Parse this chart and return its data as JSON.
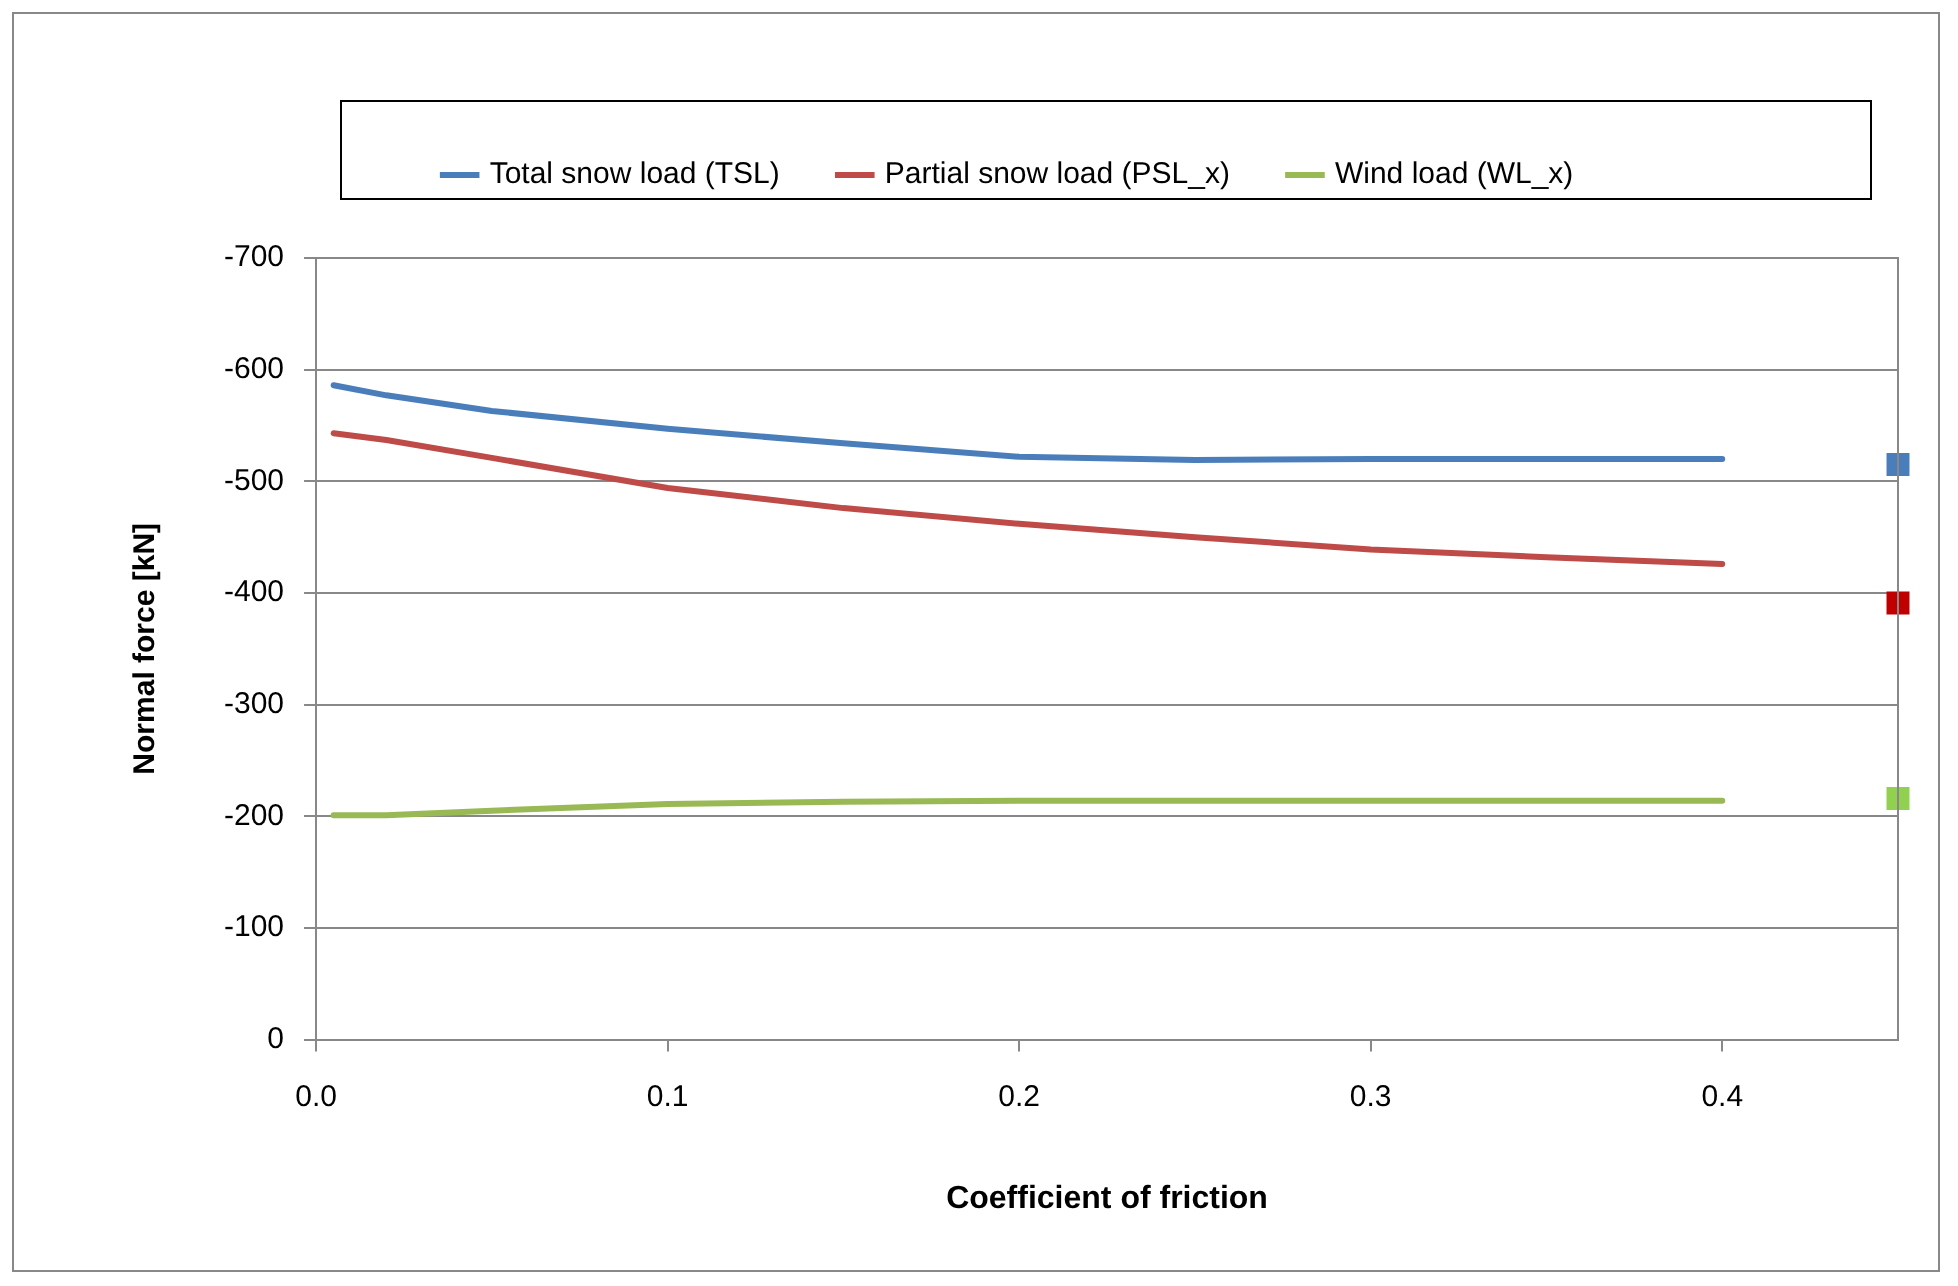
{
  "chart_data": {
    "type": "line",
    "xlabel": "Coefficient of friction",
    "ylabel": "Normal force [kN]",
    "xlim": [
      0,
      0.45
    ],
    "xticks": [
      {
        "value": 0,
        "label": "0.0"
      },
      {
        "value": 0.1,
        "label": "0.1"
      },
      {
        "value": 0.2,
        "label": "0.2"
      },
      {
        "value": 0.3,
        "label": "0.3"
      },
      {
        "value": 0.4,
        "label": "0.4"
      }
    ],
    "ylim": [
      0,
      -700
    ],
    "yticks": [
      0,
      -100,
      -200,
      -300,
      -400,
      -500,
      -600,
      -700
    ],
    "grid": "y",
    "legend": "top",
    "marker": "none",
    "series": [
      {
        "name": "Total snow load (TSL)",
        "color": "#4a7ebb",
        "x": [
          0.005,
          0.02,
          0.05,
          0.1,
          0.15,
          0.2,
          0.25,
          0.3,
          0.35,
          0.4
        ],
        "values": [
          -586,
          -577,
          -563,
          -547,
          -534,
          -522,
          -519,
          -520,
          -520,
          -520
        ]
      },
      {
        "name": "Partial snow load (PSL_x)",
        "color": "#be4b48",
        "x": [
          0.005,
          0.02,
          0.05,
          0.1,
          0.15,
          0.2,
          0.25,
          0.3,
          0.35,
          0.4
        ],
        "values": [
          -543,
          -537,
          -521,
          -494,
          -476,
          -462,
          -450,
          -439,
          -432,
          -426
        ]
      },
      {
        "name": "Wind load (WL_x)",
        "color": "#98b954",
        "x": [
          0.005,
          0.02,
          0.05,
          0.1,
          0.15,
          0.2,
          0.25,
          0.3,
          0.35,
          0.4
        ],
        "values": [
          -201,
          -201,
          -205,
          -211,
          -213,
          -214,
          -214,
          -214,
          -214,
          -214
        ]
      },
      {
        "type": "scatter",
        "marker": "square",
        "color": "#4a7ebb",
        "x": [
          0.45
        ],
        "values": [
          -515
        ]
      },
      {
        "type": "scatter",
        "marker": "square",
        "color": "#c00000",
        "x": [
          0.45
        ],
        "values": [
          -391
        ]
      },
      {
        "type": "scatter",
        "marker": "square",
        "color": "#92d050",
        "x": [
          0.45
        ],
        "values": [
          -216
        ]
      }
    ]
  }
}
